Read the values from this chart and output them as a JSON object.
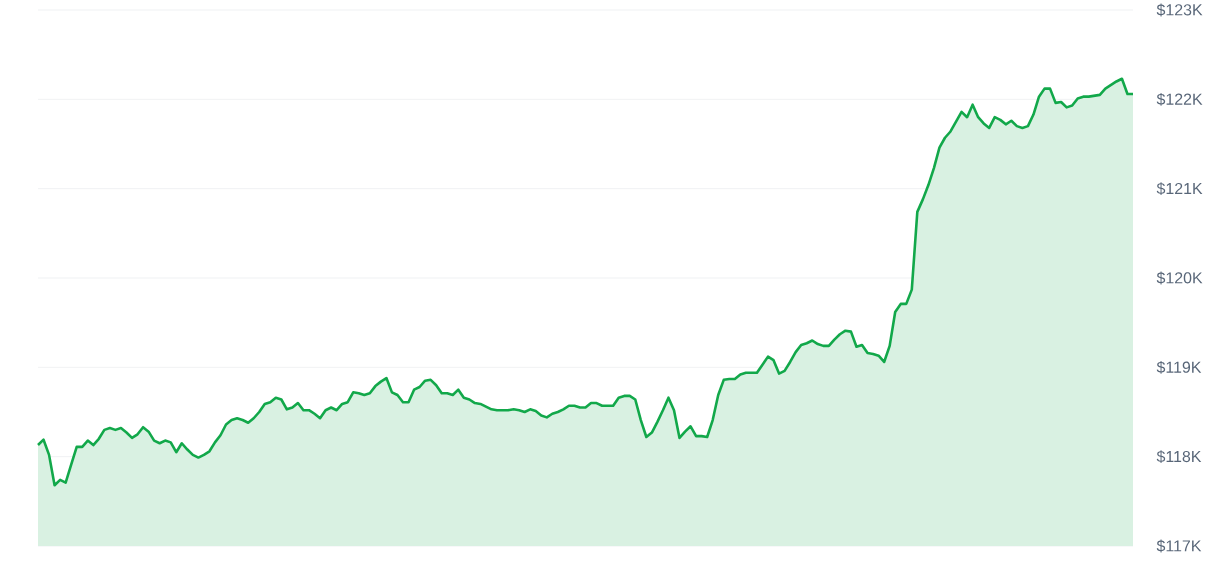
{
  "chart_data": {
    "type": "area",
    "categories": [
      null,
      null,
      null,
      null,
      null,
      null,
      null,
      null,
      null,
      null,
      null,
      null,
      null,
      null,
      null,
      null,
      null,
      null,
      null,
      null,
      null,
      null,
      null,
      null,
      null,
      null,
      null,
      null,
      null,
      null,
      null,
      null,
      null,
      null,
      null,
      null,
      null,
      null,
      null,
      null,
      null,
      null,
      null,
      null,
      null,
      null,
      null,
      null,
      null,
      null,
      null,
      null,
      null,
      null,
      null,
      null,
      null,
      null,
      null,
      null,
      null,
      null,
      null,
      null,
      null,
      null,
      null,
      null,
      null,
      null,
      null,
      null,
      null,
      null,
      null,
      null,
      null,
      null,
      null,
      null,
      null,
      null,
      null,
      null,
      null,
      null,
      null,
      null,
      null,
      null,
      null,
      null,
      null,
      null,
      null,
      null,
      null,
      null,
      null,
      null,
      null,
      null,
      null,
      null,
      null,
      null,
      null,
      null,
      null,
      null,
      null,
      null,
      null,
      null,
      null,
      null,
      null,
      null,
      null,
      null,
      null,
      null,
      null,
      null,
      null,
      null,
      null,
      null,
      null,
      null,
      null,
      null,
      null,
      null,
      null,
      null,
      null,
      null,
      null,
      null,
      null,
      null,
      null,
      null,
      null,
      null,
      null,
      null,
      null,
      null,
      null,
      null,
      null,
      null,
      null,
      null,
      null,
      null,
      null,
      null,
      null,
      null,
      null,
      null,
      null,
      null,
      null,
      null,
      null,
      null,
      null,
      null,
      null,
      null,
      null,
      null,
      null,
      null,
      null,
      null,
      null,
      null,
      null,
      null,
      null,
      null,
      null,
      null,
      null,
      null,
      null,
      null,
      null,
      null,
      null,
      null,
      null,
      null,
      null
    ],
    "series": [
      {
        "color": "#12a84a",
        "values": [
          118.13,
          118.19,
          118.02,
          117.68,
          117.74,
          117.71,
          117.91,
          118.11,
          118.11,
          118.18,
          118.13,
          118.2,
          118.3,
          118.32,
          118.3,
          118.32,
          118.27,
          118.21,
          118.25,
          118.33,
          118.28,
          118.18,
          118.15,
          118.18,
          118.16,
          118.05,
          118.15,
          118.08,
          118.02,
          117.99,
          118.02,
          118.06,
          118.16,
          118.24,
          118.36,
          118.41,
          118.43,
          118.41,
          118.38,
          118.43,
          118.5,
          118.59,
          118.61,
          118.66,
          118.64,
          118.53,
          118.55,
          118.6,
          118.52,
          118.52,
          118.48,
          118.43,
          118.52,
          118.55,
          118.52,
          118.59,
          118.61,
          118.72,
          118.71,
          118.69,
          118.71,
          118.79,
          118.84,
          118.88,
          118.72,
          118.69,
          118.61,
          118.61,
          118.75,
          118.78,
          118.85,
          118.86,
          118.8,
          118.71,
          118.71,
          118.69,
          118.75,
          118.66,
          118.64,
          118.6,
          118.59,
          118.56,
          118.53,
          118.52,
          118.52,
          118.52,
          118.53,
          118.52,
          118.5,
          118.53,
          118.51,
          118.46,
          118.44,
          118.48,
          118.5,
          118.53,
          118.57,
          118.57,
          118.55,
          118.55,
          118.6,
          118.6,
          118.57,
          118.57,
          118.57,
          118.66,
          118.68,
          118.68,
          118.64,
          118.41,
          118.22,
          118.27,
          118.39,
          118.52,
          118.66,
          118.52,
          118.21,
          118.28,
          118.34,
          118.23,
          118.23,
          118.22,
          118.41,
          118.69,
          118.86,
          118.87,
          118.87,
          118.92,
          118.94,
          118.94,
          118.94,
          119.03,
          119.12,
          119.08,
          118.93,
          118.96,
          119.06,
          119.17,
          119.25,
          119.27,
          119.3,
          119.26,
          119.24,
          119.24,
          119.31,
          119.37,
          119.41,
          119.4,
          119.23,
          119.25,
          119.16,
          119.15,
          119.13,
          119.06,
          119.24,
          119.62,
          119.71,
          119.71,
          119.87,
          120.74,
          120.88,
          121.04,
          121.23,
          121.46,
          121.57,
          121.64,
          121.75,
          121.86,
          121.8,
          121.94,
          121.8,
          121.73,
          121.68,
          121.8,
          121.77,
          121.72,
          121.76,
          121.7,
          121.68,
          121.7,
          121.83,
          122.03,
          122.12,
          122.12,
          121.96,
          121.97,
          121.91,
          121.93,
          122.01,
          122.03,
          122.03,
          122.04,
          122.05,
          122.12,
          122.16,
          122.2,
          122.23,
          122.06,
          122.06
        ]
      }
    ],
    "ylim": [
      117,
      123
    ],
    "yticks": [
      {
        "value": 117,
        "label": "$117K"
      },
      {
        "value": 118,
        "label": "$118K"
      },
      {
        "value": 119,
        "label": "$119K"
      },
      {
        "value": 120,
        "label": "$120K"
      },
      {
        "value": 121,
        "label": "$121K"
      },
      {
        "value": 122,
        "label": "$122K"
      },
      {
        "value": 123,
        "label": "$123K"
      }
    ],
    "grid": "y",
    "tick_labels": "y"
  }
}
